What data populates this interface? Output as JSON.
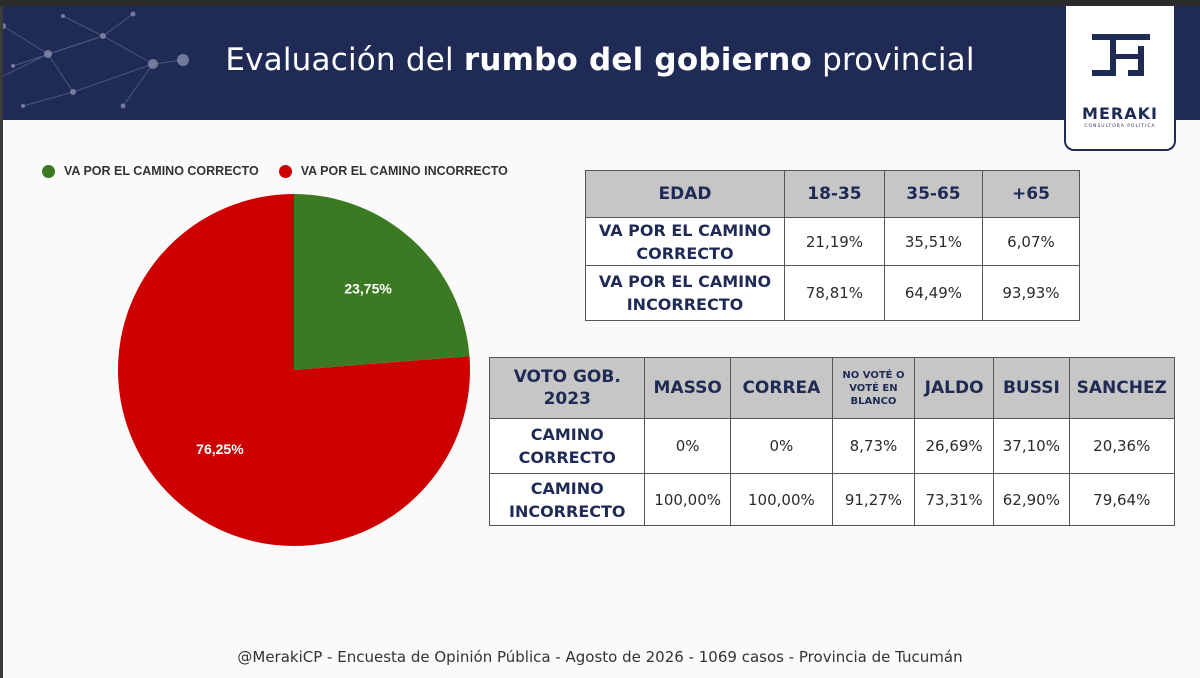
{
  "header": {
    "title_pre": "Evaluación del ",
    "title_bold": "rumbo del gobierno",
    "title_post": " provincial",
    "logo_name": "MERAKI",
    "logo_sub": "CONSULTORA POLÍTICA"
  },
  "colors": {
    "header_bg": "#1f2b55",
    "correcto": "#3b7a23",
    "incorrecto": "#cc0000"
  },
  "chart_data": {
    "type": "pie",
    "categories": [
      "VA POR EL CAMINO CORRECTO",
      "VA POR EL CAMINO INCORRECTO"
    ],
    "values": [
      23.75,
      76.25
    ],
    "labels": [
      "23,75%",
      "76,25%"
    ],
    "colors": [
      "#3b7a23",
      "#cc0000"
    ],
    "legend": "top"
  },
  "table_edad": {
    "headers": [
      "EDAD",
      "18-35",
      "35-65",
      "+65"
    ],
    "rows": [
      {
        "label_l1": "VA POR EL CAMINO",
        "label_l2": "CORRECTO",
        "values": [
          "21,19%",
          "35,51%",
          "6,07%"
        ]
      },
      {
        "label_l1": "VA POR EL CAMINO",
        "label_l2": "INCORRECTO",
        "values": [
          "78,81%",
          "64,49%",
          "93,93%"
        ]
      }
    ]
  },
  "table_voto": {
    "header_first_l1": "VOTO GOB.",
    "header_first_l2": "2023",
    "headers": [
      "MASSO",
      "CORREA",
      "",
      "JALDO",
      "BUSSI",
      "SANCHEZ"
    ],
    "no_voto": [
      "NO VOTÉ O",
      "VOTÉ EN",
      "BLANCO"
    ],
    "rows": [
      {
        "label_l1": "CAMINO",
        "label_l2": "CORRECTO",
        "values": [
          "0%",
          "0%",
          "8,73%",
          "26,69%",
          "37,10%",
          "20,36%"
        ]
      },
      {
        "label_l1": "CAMINO",
        "label_l2": "INCORRECTO",
        "values": [
          "100,00%",
          "100,00%",
          "91,27%",
          "73,31%",
          "62,90%",
          "79,64%"
        ]
      }
    ]
  },
  "footer": "@MerakiCP - Encuesta de Opinión Pública - Agosto de 2026 - 1069 casos - Provincia de Tucumán"
}
